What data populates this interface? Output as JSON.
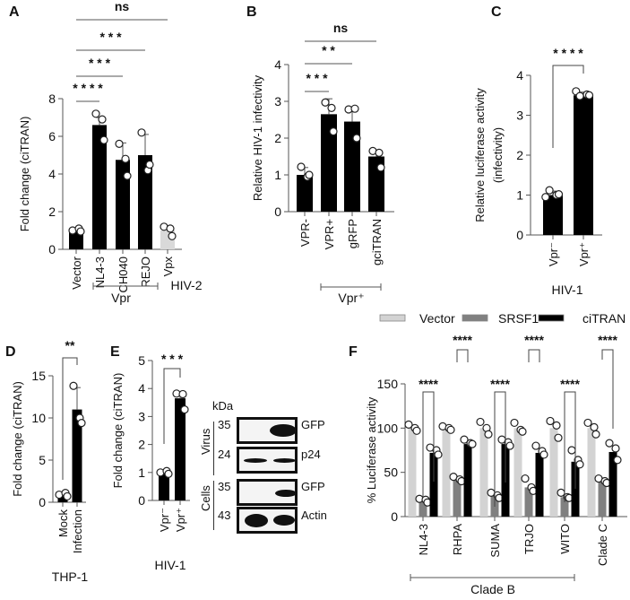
{
  "panel_letters": [
    "A",
    "B",
    "C",
    "D",
    "E",
    "F"
  ],
  "chart_data": [
    {
      "panel": "A",
      "type": "bar",
      "categories": [
        "Vector",
        "NL4-3",
        "CH040",
        "REJO",
        "Vpx"
      ],
      "values": [
        0.95,
        6.6,
        4.75,
        5.0,
        1.0
      ],
      "errors": [
        0.1,
        0.4,
        0.9,
        1.1,
        0.25
      ],
      "points": [
        [
          1.0,
          1.1,
          0.95
        ],
        [
          7.2,
          6.9,
          5.8
        ],
        [
          5.6,
          4.8,
          3.9
        ],
        [
          6.2,
          4.2,
          4.5
        ],
        [
          1.2,
          1.1,
          0.7
        ]
      ],
      "colors": [
        "#000000",
        "#000000",
        "#000000",
        "#000000",
        "#d9d9d9"
      ],
      "ylabel": [
        "Fold change (ciTRAN)"
      ],
      "ylim": [
        0,
        8
      ],
      "yticks": [
        0,
        2,
        4,
        6,
        8
      ],
      "significance": [
        {
          "label": "* * * *",
          "from": 0,
          "to": 1
        },
        {
          "label": "* * *",
          "from": 0,
          "to": 2
        },
        {
          "label": "* * *",
          "from": 0,
          "to": 3
        },
        {
          "label": "ns",
          "from": 0,
          "to": 4
        }
      ],
      "groups": [
        {
          "label": "Vpr"
        },
        {
          "label": "HIV-2"
        }
      ]
    },
    {
      "panel": "B",
      "type": "bar",
      "categories": [
        "VPR-",
        "VPR+",
        "gRFP",
        "gciTRAN"
      ],
      "values": [
        1.0,
        2.65,
        2.45,
        1.5
      ],
      "errors": [
        0.2,
        0.42,
        0.4,
        0.15
      ],
      "points": [
        [
          1.22,
          0.95,
          1.0
        ],
        [
          2.97,
          2.82,
          2.18
        ],
        [
          2.78,
          2.8,
          2.0
        ],
        [
          1.65,
          1.6,
          1.2
        ]
      ],
      "colors": [
        "#000000",
        "#000000",
        "#000000",
        "#000000"
      ],
      "ylabel": [
        "Relative HIV-1 infectivity"
      ],
      "ylim": [
        0,
        4
      ],
      "yticks": [
        0,
        1,
        2,
        3,
        4
      ],
      "significance": [
        {
          "label": "* * *",
          "from": 0,
          "to": 1
        },
        {
          "label": "* *",
          "from": 0,
          "to": 2
        },
        {
          "label": "ns",
          "from": 0,
          "to": 3
        }
      ],
      "groups": [
        {
          "label": "Vpr⁺"
        }
      ]
    },
    {
      "panel": "C",
      "type": "bar",
      "categories": [
        "Vpr⁻",
        "Vpr⁺"
      ],
      "values": [
        1.0,
        3.5
      ],
      "errors": [
        0.1,
        0.08
      ],
      "points": [
        [
          0.95,
          1.0,
          1.02,
          1.12
        ],
        [
          3.6,
          3.52,
          3.5,
          3.48
        ]
      ],
      "colors": [
        "#000000",
        "#000000"
      ],
      "ylabel": [
        "Relative luciferase activity",
        "(infectivity)"
      ],
      "ylim": [
        0,
        4
      ],
      "yticks": [
        0,
        1,
        2,
        3,
        4
      ],
      "significance": [
        {
          "label": "* * * *",
          "from": 0,
          "to": 1
        }
      ],
      "groups": [
        {
          "label": "HIV-1"
        }
      ]
    },
    {
      "panel": "D",
      "type": "bar",
      "categories": [
        "Mock",
        "Infection"
      ],
      "values": [
        0.8,
        11.0
      ],
      "errors": [
        0.2,
        2.6
      ],
      "points": [
        [
          0.9,
          1.1,
          0.7
        ],
        [
          13.8,
          10.0,
          9.4
        ]
      ],
      "colors": [
        "#000000",
        "#000000"
      ],
      "ylabel": [
        "Fold change (ciTRAN)"
      ],
      "ylim": [
        0,
        15
      ],
      "yticks": [
        0,
        5,
        10,
        15
      ],
      "significance": [
        {
          "label": "**",
          "from": 0,
          "to": 1
        }
      ],
      "groups": [
        {
          "label": "THP-1"
        }
      ]
    },
    {
      "panel": "E",
      "type": "bar",
      "categories": [
        "Vpr⁻",
        "Vpr⁺"
      ],
      "values": [
        0.95,
        3.65
      ],
      "errors": [
        0.08,
        0.2
      ],
      "points": [
        [
          1.0,
          1.05,
          0.95
        ],
        [
          3.82,
          3.8,
          3.25
        ]
      ],
      "colors": [
        "#000000",
        "#000000"
      ],
      "ylabel": [
        "Fold change (ciTRAN)"
      ],
      "ylim": [
        0,
        5
      ],
      "yticks": [
        0,
        1,
        2,
        3,
        4,
        5
      ],
      "significance": [
        {
          "label": "* * *",
          "from": 0,
          "to": 1
        }
      ],
      "groups": [
        {
          "label": "HIV-1"
        }
      ]
    },
    {
      "panel": "F",
      "type": "bar",
      "categories": [
        "NL4-3",
        "RHPA",
        "SUMA",
        "TRJO",
        "WITO",
        "Clade C"
      ],
      "series": [
        {
          "name": "Vector",
          "color": "#d3d3d3",
          "values": [
            100,
            100,
            100,
            100,
            100,
            100
          ],
          "points": [
            [
              104,
              100,
              97
            ],
            [
              102,
              100,
              98
            ],
            [
              107,
              100,
              93
            ],
            [
              106,
              98,
              96
            ],
            [
              108,
              103,
              89
            ],
            [
              106,
              101,
              93
            ]
          ]
        },
        {
          "name": "SRSF1",
          "color": "#808080",
          "values": [
            18,
            42,
            23,
            33,
            22,
            40
          ],
          "points": [
            [
              20,
              19,
              16
            ],
            [
              45,
              42,
              40
            ],
            [
              27,
              24,
              21
            ],
            [
              43,
              33,
              29
            ],
            [
              27,
              22,
              21
            ],
            [
              43,
              40,
              38
            ]
          ]
        },
        {
          "name": "ciTRAN",
          "color": "#000000",
          "values": [
            72,
            82,
            82,
            72,
            62,
            73
          ],
          "points": [
            [
              78,
              75,
              70
            ],
            [
              87,
              83,
              82
            ],
            [
              87,
              84,
              80
            ],
            [
              80,
              74,
              70
            ],
            [
              75,
              64,
              59
            ],
            [
              83,
              77,
              64
            ]
          ]
        }
      ],
      "ylabel": [
        "% Luciferase  activity"
      ],
      "ylim": [
        0,
        150
      ],
      "yticks": [
        0,
        50,
        100,
        150
      ],
      "significance": [
        {
          "label": "****",
          "category": 0
        },
        {
          "label": "****",
          "category": 1
        },
        {
          "label": "****",
          "category": 2
        },
        {
          "label": "****",
          "category": 3
        },
        {
          "label": "****",
          "category": 4
        },
        {
          "label": "****",
          "category": 5
        }
      ],
      "groups": [
        {
          "label": "Clade B"
        }
      ]
    }
  ],
  "blot": {
    "unit_label": "kDa",
    "sections": [
      "Virus",
      "Cells"
    ],
    "rows": [
      {
        "kda": "35",
        "protein": "GFP"
      },
      {
        "kda": "24",
        "protein": "p24"
      },
      {
        "kda": "35",
        "protein": "GFP"
      },
      {
        "kda": "43",
        "protein": "Actin"
      }
    ]
  }
}
